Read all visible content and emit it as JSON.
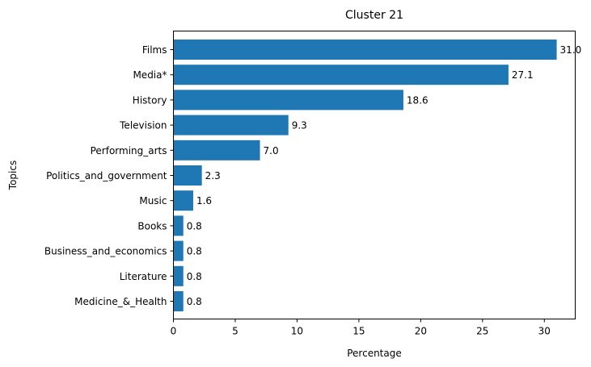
{
  "chart_data": {
    "type": "bar",
    "orientation": "horizontal",
    "title": "Cluster 21",
    "xlabel": "Percentage",
    "ylabel": "Topics",
    "xlim": [
      0,
      32.5
    ],
    "xticks": [
      0,
      5,
      10,
      15,
      20,
      25,
      30
    ],
    "grid": false,
    "bar_color": "#1f77b4",
    "categories": [
      "Films",
      "Media*",
      "History",
      "Television",
      "Performing_arts",
      "Politics_and_government",
      "Music",
      "Books",
      "Business_and_economics",
      "Literature",
      "Medicine_&_Health"
    ],
    "values": [
      31.0,
      27.1,
      18.6,
      9.3,
      7.0,
      2.3,
      1.6,
      0.8,
      0.8,
      0.8,
      0.8
    ],
    "data_labels": [
      "31.0",
      "27.1",
      "18.6",
      "9.3",
      "7.0",
      "2.3",
      "1.6",
      "0.8",
      "0.8",
      "0.8",
      "0.8"
    ]
  }
}
